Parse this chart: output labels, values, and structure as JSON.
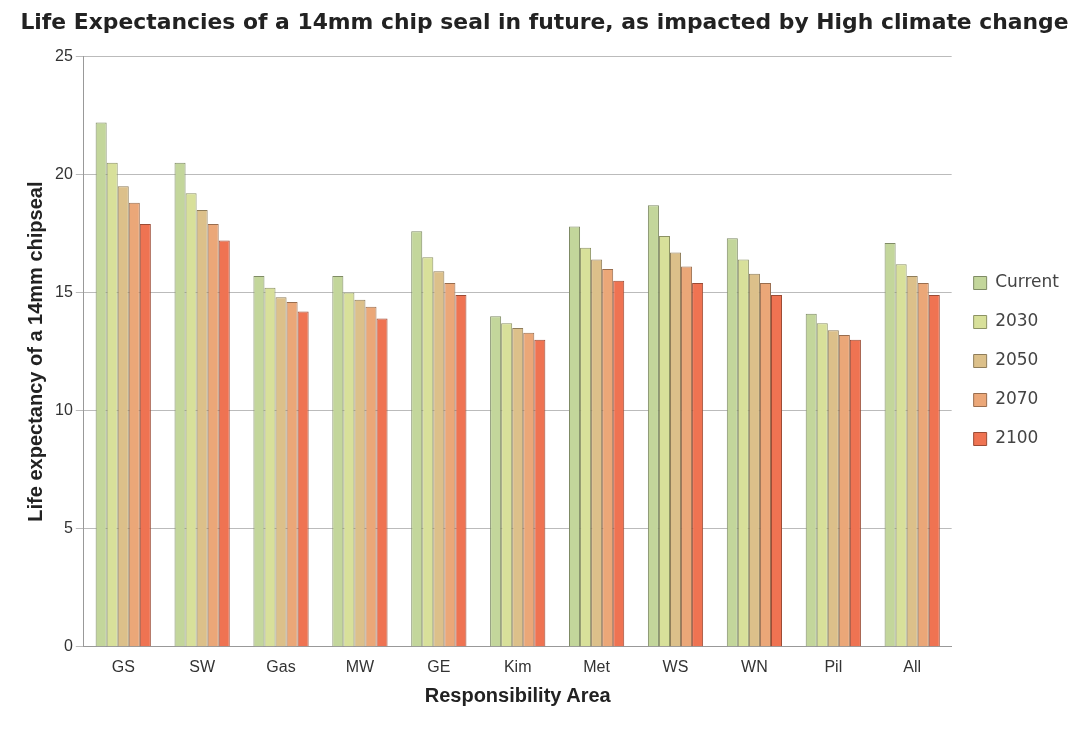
{
  "chart_data": {
    "type": "bar",
    "title": "Life Expectancies of a 14mm chip seal in future, as impacted by High climate change",
    "xlabel": "Responsibility Area",
    "ylabel": "Life expectancy of a 14mm chipseal",
    "categories": [
      "GS",
      "SW",
      "Gas",
      "MW",
      "GE",
      "Kim",
      "Met",
      "WS",
      "WN",
      "Pil",
      "All"
    ],
    "series": [
      {
        "name": "Current",
        "color": "#c3d69b",
        "values": [
          22.2,
          20.5,
          15.7,
          15.7,
          17.6,
          14.0,
          17.8,
          18.7,
          17.3,
          14.1,
          17.1
        ]
      },
      {
        "name": "2030",
        "color": "#d8e09a",
        "values": [
          20.5,
          19.2,
          15.2,
          15.0,
          16.5,
          13.7,
          16.9,
          17.4,
          16.4,
          13.7,
          16.2
        ]
      },
      {
        "name": "2050",
        "color": "#dcc08a",
        "values": [
          19.5,
          18.5,
          14.8,
          14.7,
          15.9,
          13.5,
          16.4,
          16.7,
          15.8,
          13.4,
          15.7
        ]
      },
      {
        "name": "2070",
        "color": "#eba778",
        "values": [
          18.8,
          17.9,
          14.6,
          14.4,
          15.4,
          13.3,
          16.0,
          16.1,
          15.4,
          13.2,
          15.4
        ]
      },
      {
        "name": "2100",
        "color": "#ef7352",
        "values": [
          17.9,
          17.2,
          14.2,
          13.9,
          14.9,
          13.0,
          15.5,
          15.4,
          14.9,
          13.0,
          14.9
        ]
      }
    ],
    "ylim": [
      0,
      25
    ],
    "yticks": [
      0,
      5,
      10,
      15,
      20,
      25
    ],
    "grid": "y",
    "legend": "right"
  }
}
